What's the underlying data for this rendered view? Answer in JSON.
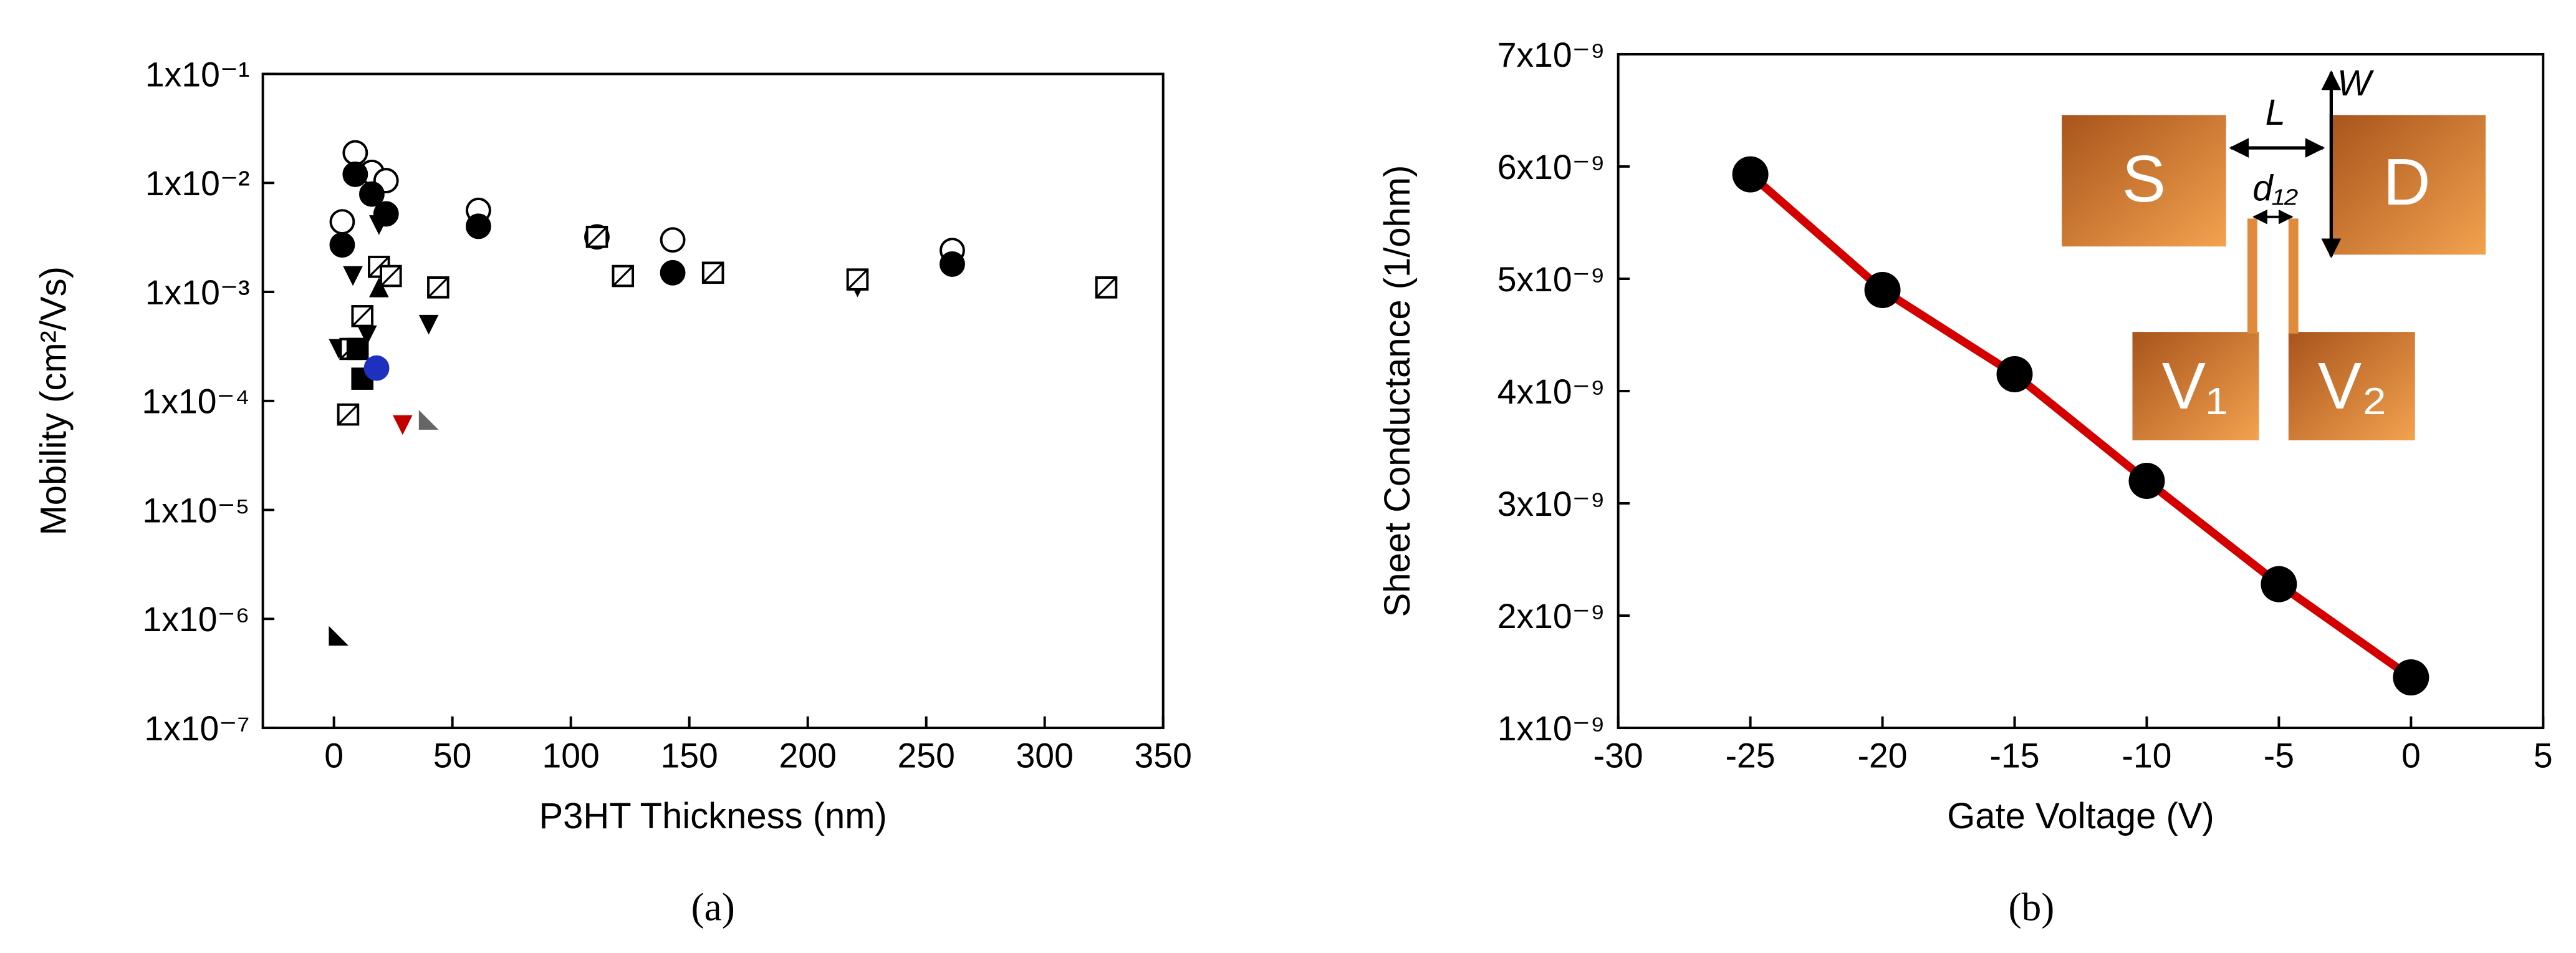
{
  "chart_data": [
    {
      "type": "scatter",
      "caption": "(a)",
      "x_label": "P3HT Thickness (nm)",
      "y_label": "Mobility (cm²/Vs)",
      "log_y": true,
      "grid": false,
      "xlim": [
        -30,
        350
      ],
      "xticks": [
        0,
        50,
        100,
        150,
        200,
        250,
        300,
        350
      ],
      "ylim": [
        1e-07,
        0.1
      ],
      "yticks": [
        {
          "value": 1e-07,
          "label": "1x10⁻⁷"
        },
        {
          "value": 1e-06,
          "label": "1x10⁻⁶"
        },
        {
          "value": 1e-05,
          "label": "1x10⁻⁵"
        },
        {
          "value": 0.0001,
          "label": "1x10⁻⁴"
        },
        {
          "value": 0.001,
          "label": "1x10⁻³"
        },
        {
          "value": 0.01,
          "label": "1x10⁻²"
        },
        {
          "value": 0.1,
          "label": "1x10⁻¹"
        }
      ],
      "series": [
        {
          "marker": "circle-open",
          "color": "#000000",
          "x": [
            9,
            16,
            22,
            3.5,
            61,
            111,
            143,
            261
          ],
          "values": [
            0.0189,
            0.0125,
            0.0105,
            0.0044,
            0.0056,
            0.0032,
            0.003,
            0.0024
          ]
        },
        {
          "marker": "circle",
          "color": "#000000",
          "x": [
            9,
            16,
            22,
            3.5,
            61,
            143,
            261
          ],
          "values": [
            0.012,
            0.0079,
            0.0052,
            0.0027,
            0.004,
            0.0015,
            0.0018
          ]
        },
        {
          "marker": "triangle-down",
          "color": "#000000",
          "x": [
            8,
            19,
            14,
            40,
            2,
            221
          ],
          "values": [
            0.0014,
            0.0041,
            0.0004,
            0.0005,
            0.0003,
            0.0011
          ]
        },
        {
          "marker": "triangle-up",
          "color": "#000000",
          "x": [
            19
          ],
          "values": [
            0.0011
          ]
        },
        {
          "marker": "square-slash",
          "color": "#000000",
          "x": [
            19,
            24,
            44,
            111,
            122,
            160,
            221,
            326,
            12,
            6,
            7
          ],
          "values": [
            0.0017,
            0.0014,
            0.0011,
            0.0032,
            0.0014,
            0.0015,
            0.0013,
            0.0011,
            0.0006,
            7.5e-05,
            0.0003
          ]
        },
        {
          "marker": "square",
          "color": "#000000",
          "x": [
            12,
            10
          ],
          "values": [
            0.00016,
            0.0003
          ]
        },
        {
          "marker": "circle",
          "color": "#1f2fbf",
          "x": [
            18
          ],
          "values": [
            0.0002
          ]
        },
        {
          "marker": "triangle-down",
          "color": "#c00000",
          "x": [
            29
          ],
          "values": [
            6e-05
          ]
        },
        {
          "marker": "triangle-right",
          "color": "#666666",
          "x": [
            40
          ],
          "values": [
            6.7e-05
          ]
        },
        {
          "marker": "triangle-right",
          "color": "#000000",
          "x": [
            2
          ],
          "values": [
            7e-07
          ]
        }
      ]
    },
    {
      "type": "line",
      "caption": "(b)",
      "x_label": "Gate Voltage (V)",
      "y_label": "Sheet Conductance (1/ohm)",
      "log_y": false,
      "grid": false,
      "xlim": [
        -30,
        5
      ],
      "xticks": [
        -30,
        -25,
        -20,
        -15,
        -10,
        -5,
        0,
        5
      ],
      "ylim": [
        1e-09,
        7e-09
      ],
      "yticks": [
        {
          "value": 1e-09,
          "label": "1x10⁻⁹"
        },
        {
          "value": 2e-09,
          "label": "2x10⁻⁹"
        },
        {
          "value": 3e-09,
          "label": "3x10⁻⁹"
        },
        {
          "value": 4e-09,
          "label": "4x10⁻⁹"
        },
        {
          "value": 5e-09,
          "label": "5x10⁻⁹"
        },
        {
          "value": 6e-09,
          "label": "6x10⁻⁹"
        },
        {
          "value": 7e-09,
          "label": "7x10⁻⁹"
        }
      ],
      "x": [
        -25,
        -20,
        -15,
        -10,
        -5,
        0
      ],
      "series": [
        {
          "color": "#d40000",
          "marker_color": "#000000",
          "values": [
            5.93e-09,
            4.9e-09,
            4.15e-09,
            3.2e-09,
            2.28e-09,
            1.45e-09
          ]
        }
      ],
      "inset": {
        "source": "S",
        "drain": "D",
        "probe_1": "V₁",
        "probe_2": "V₂",
        "length": "L",
        "width": "W",
        "probe_spacing": "d₁₂"
      }
    }
  ]
}
